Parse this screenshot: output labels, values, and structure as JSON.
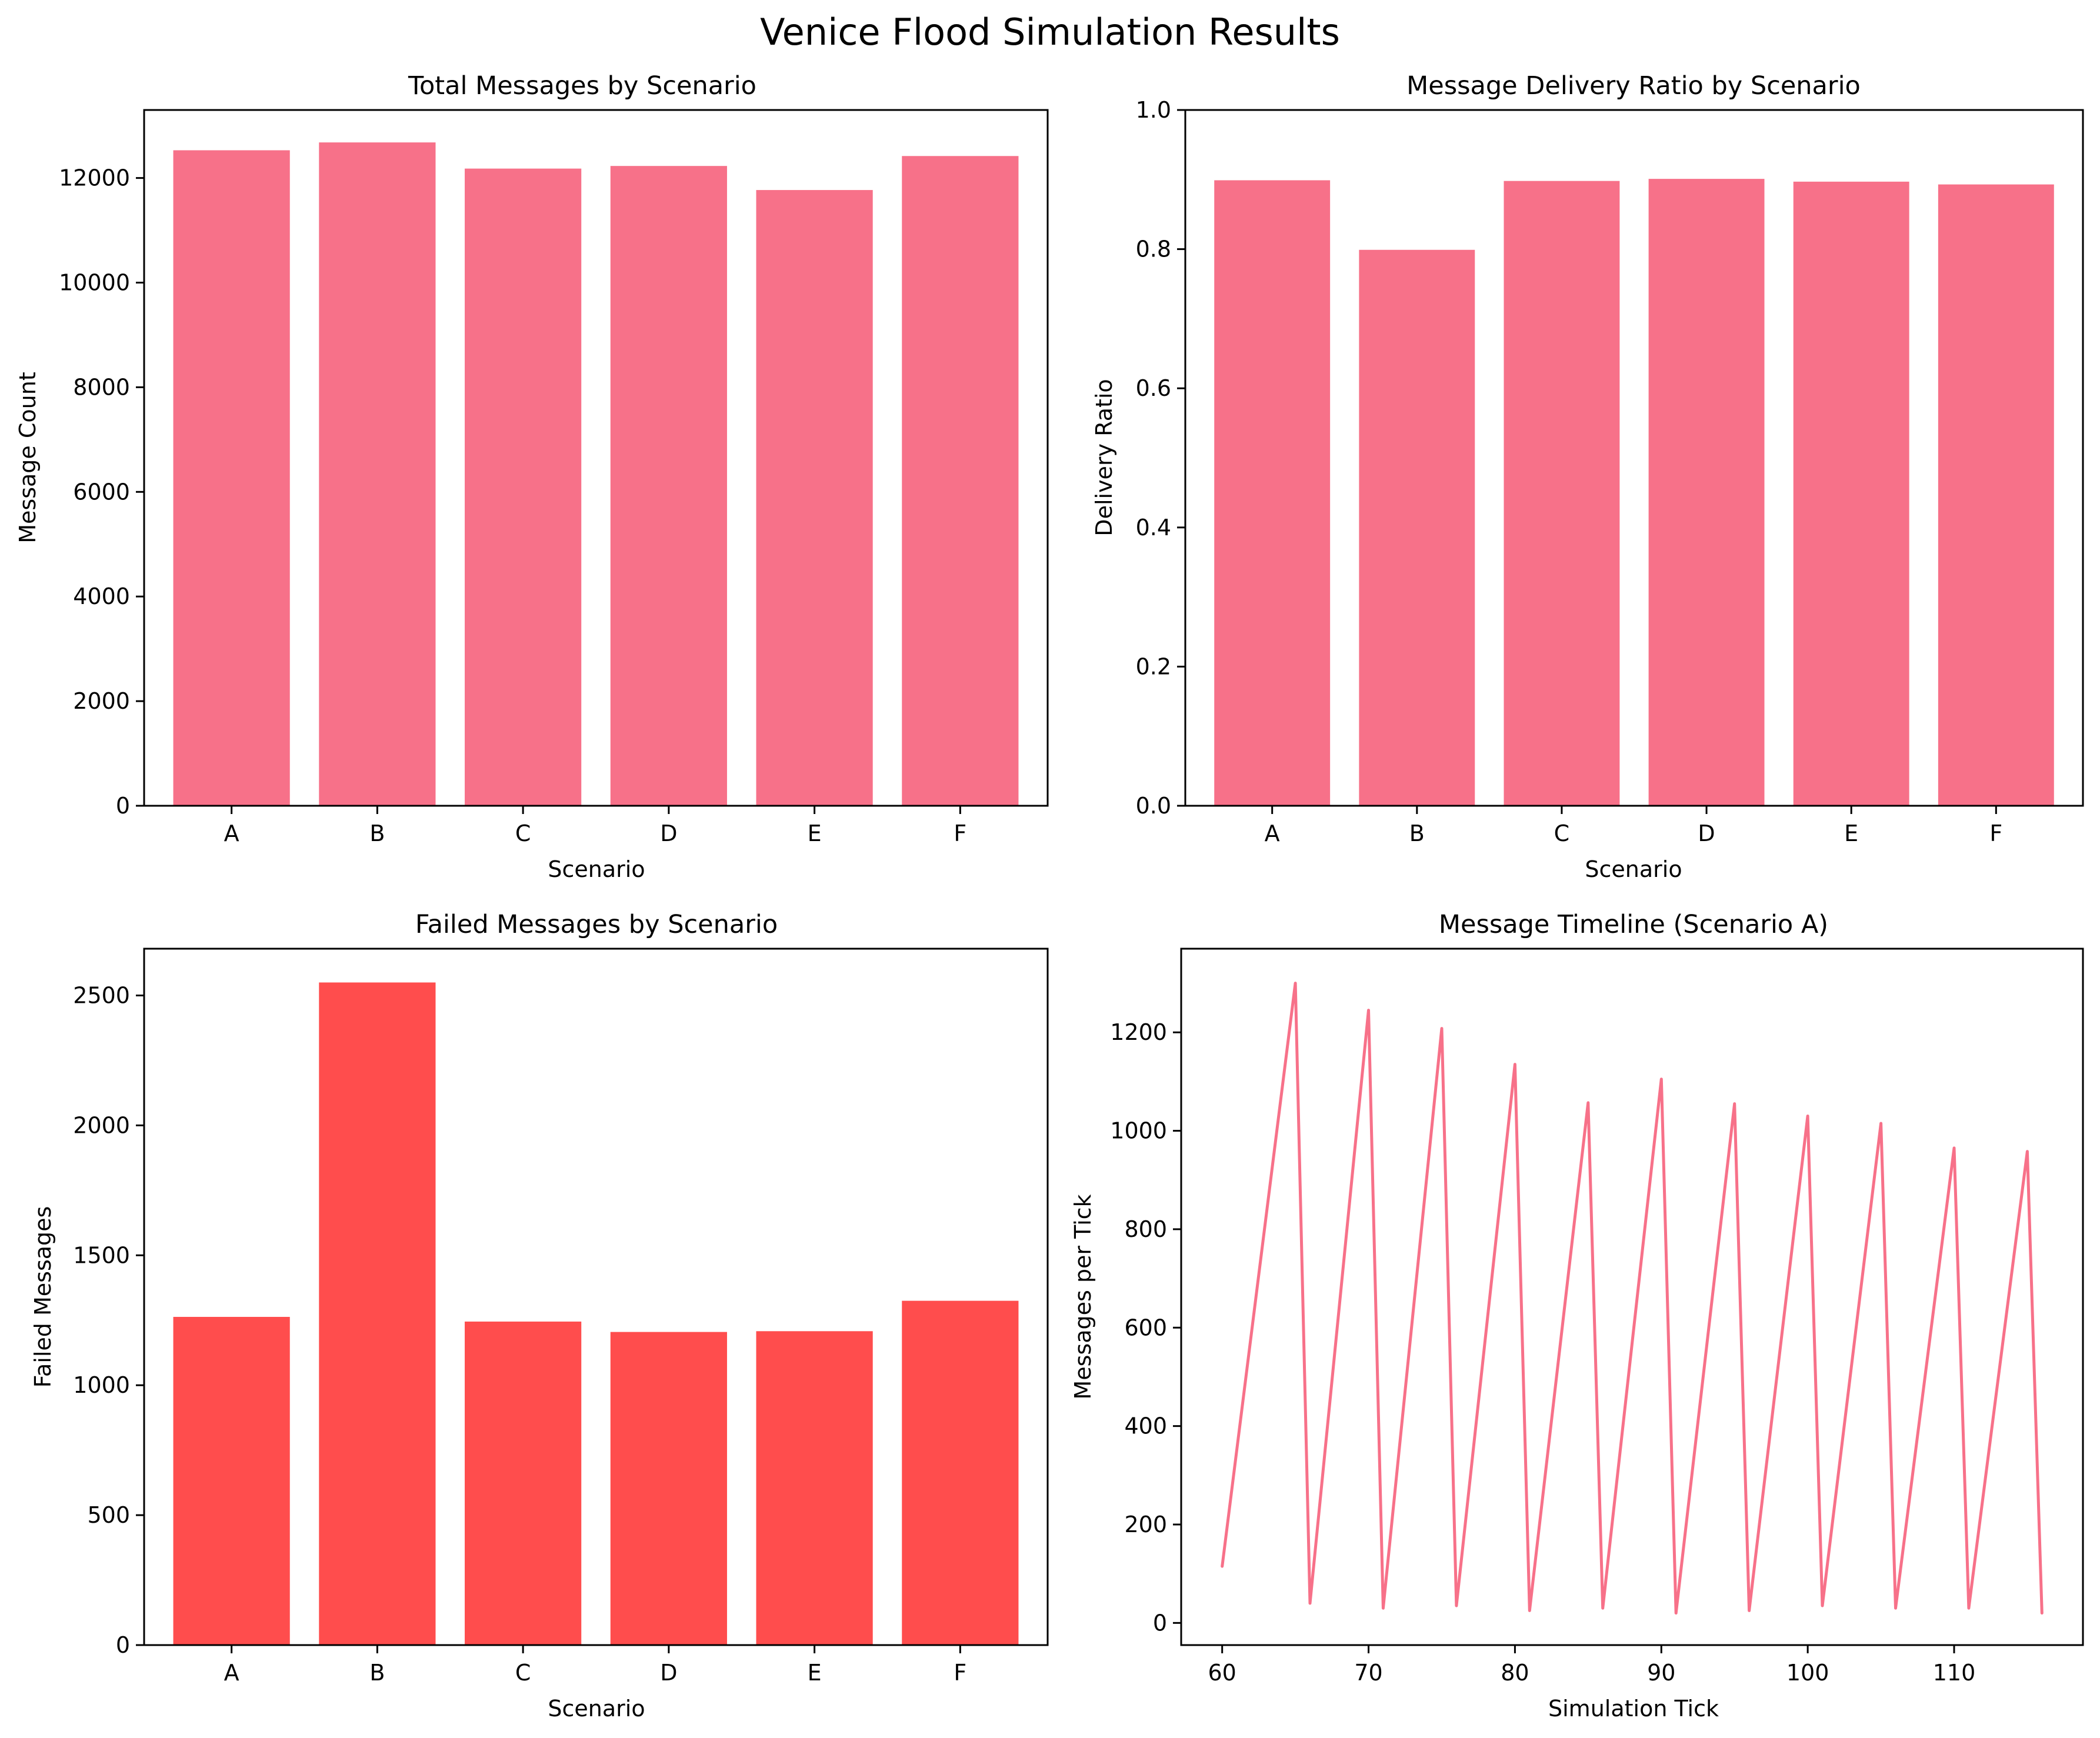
{
  "figure": {
    "title": "Venice Flood Simulation Results"
  },
  "chart_data": [
    {
      "type": "bar",
      "title": "Total Messages by Scenario",
      "xlabel": "Scenario",
      "ylabel": "Message Count",
      "categories": [
        "A",
        "B",
        "C",
        "D",
        "E",
        "F"
      ],
      "values": [
        12530,
        12680,
        12180,
        12230,
        11770,
        12420
      ],
      "ylim": [
        0,
        13300
      ],
      "yticks": [
        0,
        2000,
        4000,
        6000,
        8000,
        10000,
        12000
      ],
      "color": "#f77189"
    },
    {
      "type": "bar",
      "title": "Message Delivery Ratio by Scenario",
      "xlabel": "Scenario",
      "ylabel": "Delivery Ratio",
      "categories": [
        "A",
        "B",
        "C",
        "D",
        "E",
        "F"
      ],
      "values": [
        0.899,
        0.799,
        0.898,
        0.901,
        0.897,
        0.893
      ],
      "ylim": [
        0,
        1.0
      ],
      "yticks": [
        0.0,
        0.2,
        0.4,
        0.6,
        0.8,
        1.0
      ],
      "ytick_decimals": 1,
      "color": "#f77189"
    },
    {
      "type": "bar",
      "title": "Failed Messages by Scenario",
      "xlabel": "Scenario",
      "ylabel": "Failed Messages",
      "categories": [
        "A",
        "B",
        "C",
        "D",
        "E",
        "F"
      ],
      "values": [
        1263,
        2550,
        1245,
        1205,
        1208,
        1325
      ],
      "ylim": [
        0,
        2680
      ],
      "yticks": [
        0,
        500,
        1000,
        1500,
        2000,
        2500
      ],
      "color": "#ff4d4d"
    },
    {
      "type": "line",
      "title": "Message Timeline (Scenario A)",
      "xlabel": "Simulation Tick",
      "ylabel": "Messages per Tick",
      "x": [
        60,
        65,
        66,
        70,
        71,
        75,
        76,
        80,
        81,
        85,
        86,
        90,
        91,
        95,
        96,
        100,
        101,
        105,
        106,
        110,
        111,
        115,
        116
      ],
      "y": [
        115,
        1300,
        40,
        1245,
        30,
        1208,
        35,
        1135,
        25,
        1057,
        30,
        1105,
        20,
        1055,
        25,
        1030,
        35,
        1015,
        30,
        965,
        30,
        958,
        20
      ],
      "xlim": [
        57.2,
        118.8
      ],
      "ylim": [
        -45,
        1370
      ],
      "xticks": [
        60,
        70,
        80,
        90,
        100,
        110
      ],
      "yticks": [
        0,
        200,
        400,
        600,
        800,
        1000,
        1200
      ],
      "color": "#f77189"
    }
  ]
}
